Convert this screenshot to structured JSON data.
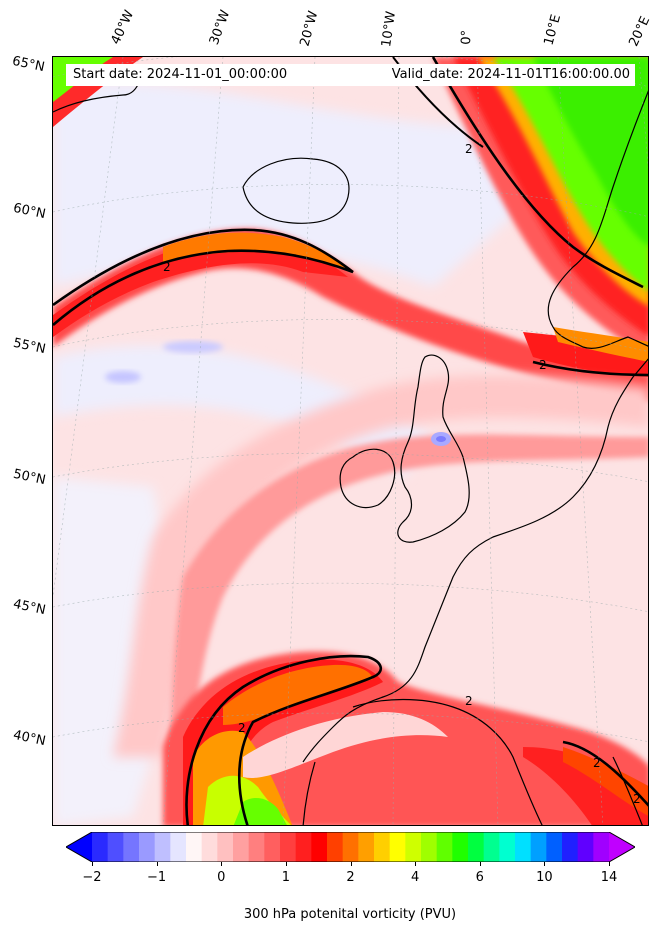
{
  "header": {
    "start_date": "Start date: 2024-11-01_00:00:00",
    "valid_date": "Valid_date: 2024-11-01T16:00:00.00"
  },
  "map": {
    "longitude_labels": [
      "40°W",
      "30°W",
      "20°W",
      "10°W",
      "0°",
      "10°E",
      "20°E"
    ],
    "latitude_labels": [
      "65°N",
      "60°N",
      "55°N",
      "50°N",
      "45°N",
      "40°N"
    ],
    "contour_label": "2"
  },
  "colorbar": {
    "title": "300 hPa potenital vorticity (PVU)",
    "tick_labels": [
      "−2",
      "−1",
      "0",
      "1",
      "2",
      "4",
      "6",
      "10",
      "14"
    ],
    "colors": [
      "#0000ff",
      "#2a2aff",
      "#4f4fff",
      "#7575ff",
      "#9a9aff",
      "#bfbfff",
      "#e5e5ff",
      "#fff6f6",
      "#ffdcdc",
      "#ffc0c0",
      "#ffa0a0",
      "#ff7f7f",
      "#ff5f5f",
      "#ff3f3f",
      "#ff1f1f",
      "#ff0000",
      "#ff4000",
      "#ff7000",
      "#ff9f00",
      "#ffcf00",
      "#ffff00",
      "#cfff00",
      "#9fff00",
      "#60ff00",
      "#20ff00",
      "#00ff40",
      "#00ff90",
      "#00ffd0",
      "#00e0ff",
      "#00a0ff",
      "#0060ff",
      "#2020ff",
      "#6000ff",
      "#a000ff",
      "#c000ff"
    ]
  }
}
